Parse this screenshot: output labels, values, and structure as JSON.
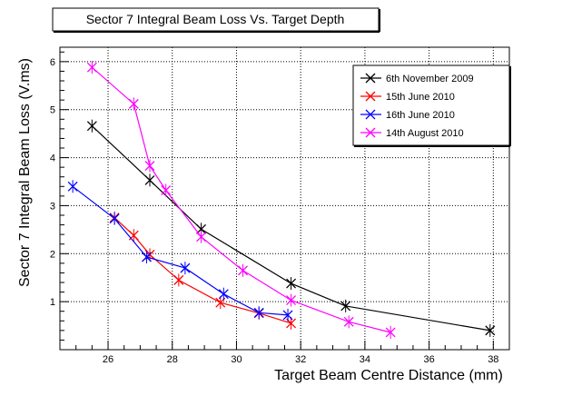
{
  "chart_data": {
    "type": "line",
    "title": "Sector 7 Integral Beam Loss Vs. Target Depth",
    "xlabel": "Target Beam Centre Distance (mm)",
    "ylabel": "Sector 7 Integral Beam Loss (V.ms)",
    "xlim": [
      24.5,
      38.5
    ],
    "ylim": [
      0,
      6.3
    ],
    "x_ticks": [
      26,
      28,
      30,
      32,
      34,
      36,
      38
    ],
    "y_ticks": [
      1,
      2,
      3,
      4,
      5,
      6
    ],
    "grid": true,
    "legend_position": "top-right",
    "series": [
      {
        "name": "6th November 2009",
        "color": "#000000",
        "x": [
          25.5,
          27.3,
          28.9,
          31.7,
          33.4,
          37.9
        ],
        "y": [
          4.66,
          3.53,
          2.51,
          1.38,
          0.91,
          0.4
        ]
      },
      {
        "name": "15th June 2010",
        "color": "#ff0000",
        "x": [
          26.2,
          26.8,
          27.3,
          28.2,
          29.5,
          30.7,
          31.7
        ],
        "y": [
          2.75,
          2.38,
          1.98,
          1.45,
          0.98,
          0.76,
          0.55
        ]
      },
      {
        "name": "16th June 2010",
        "color": "#0000ff",
        "x": [
          24.9,
          26.2,
          27.2,
          28.4,
          29.6,
          30.7,
          31.6
        ],
        "y": [
          3.4,
          2.73,
          1.93,
          1.7,
          1.16,
          0.77,
          0.72
        ]
      },
      {
        "name": "14th August 2010",
        "color": "#ff00ff",
        "x": [
          25.5,
          26.8,
          27.3,
          27.8,
          28.9,
          30.2,
          31.7,
          33.5,
          34.8
        ],
        "y": [
          5.88,
          5.12,
          3.83,
          3.32,
          2.35,
          1.65,
          1.03,
          0.58,
          0.36
        ]
      }
    ]
  }
}
